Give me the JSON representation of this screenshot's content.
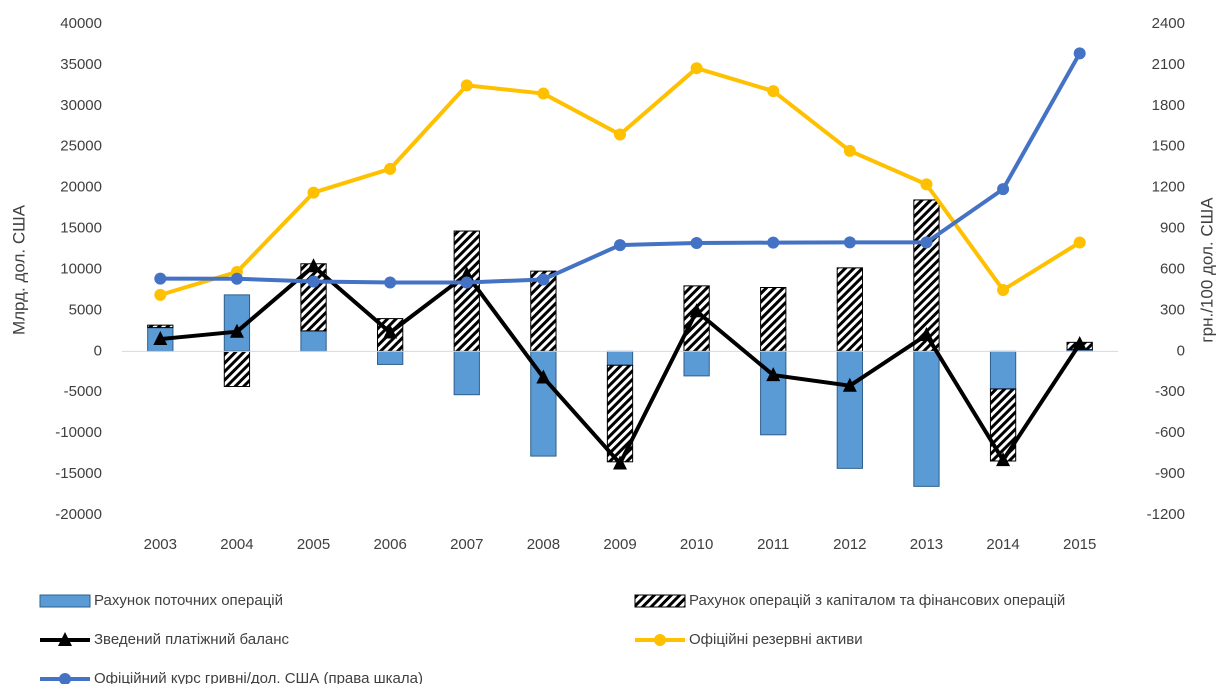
{
  "chart_data": {
    "type": "combo",
    "ylabel": "Млрд. дол. США",
    "y2label": "грн./100 дол. США",
    "categories": [
      "2003",
      "2004",
      "2005",
      "2006",
      "2007",
      "2008",
      "2009",
      "2010",
      "2011",
      "2012",
      "2013",
      "2014",
      "2015"
    ],
    "ylim": [
      -20000,
      40000
    ],
    "yticks": [
      -20000,
      -15000,
      -10000,
      -5000,
      0,
      5000,
      10000,
      15000,
      20000,
      25000,
      30000,
      35000,
      40000
    ],
    "y2lim": [
      -1200,
      2400
    ],
    "y2ticks": [
      -1200,
      -900,
      -600,
      -300,
      0,
      300,
      600,
      900,
      1200,
      1500,
      1800,
      2100,
      2400
    ],
    "legend": "bottom",
    "series": [
      {
        "name": "Рахунок поточних операцій",
        "type": "bar",
        "color": "#5b9bd5",
        "values": [
          2900,
          6900,
          2500,
          -1600,
          -5300,
          -12800,
          -1700,
          -3000,
          -10200,
          -14300,
          -16500,
          -4600,
          200
        ]
      },
      {
        "name": "Рахунок операцій з капіталом та фінансових операцій",
        "type": "bar",
        "color": "#000000",
        "hatch": true,
        "values": [
          300,
          -4300,
          8200,
          4000,
          14700,
          9800,
          -11800,
          8000,
          7800,
          10200,
          18500,
          -8800,
          900
        ]
      },
      {
        "name": "Зведений платіжний баланс",
        "type": "line",
        "color": "#000000",
        "marker": "triangle",
        "values": [
          1500,
          2400,
          10400,
          2300,
          9400,
          -3200,
          -13700,
          4900,
          -2900,
          -4200,
          2000,
          -13300,
          900
        ]
      },
      {
        "name": "Офіційні резервні активи",
        "type": "line",
        "color": "#ffc000",
        "marker": "circle",
        "values": [
          6900,
          9700,
          19400,
          22300,
          32500,
          31500,
          26500,
          34600,
          31800,
          24500,
          20400,
          7500,
          13300
        ]
      },
      {
        "name": "Офіційний курс гривні/дол. США (права шкала)",
        "type": "line",
        "color": "#4472c4",
        "marker": "circle",
        "axis": "y2",
        "values": [
          533,
          532,
          512,
          505,
          505,
          527,
          779,
          794,
          797,
          799,
          799,
          1189,
          2185
        ]
      }
    ]
  }
}
